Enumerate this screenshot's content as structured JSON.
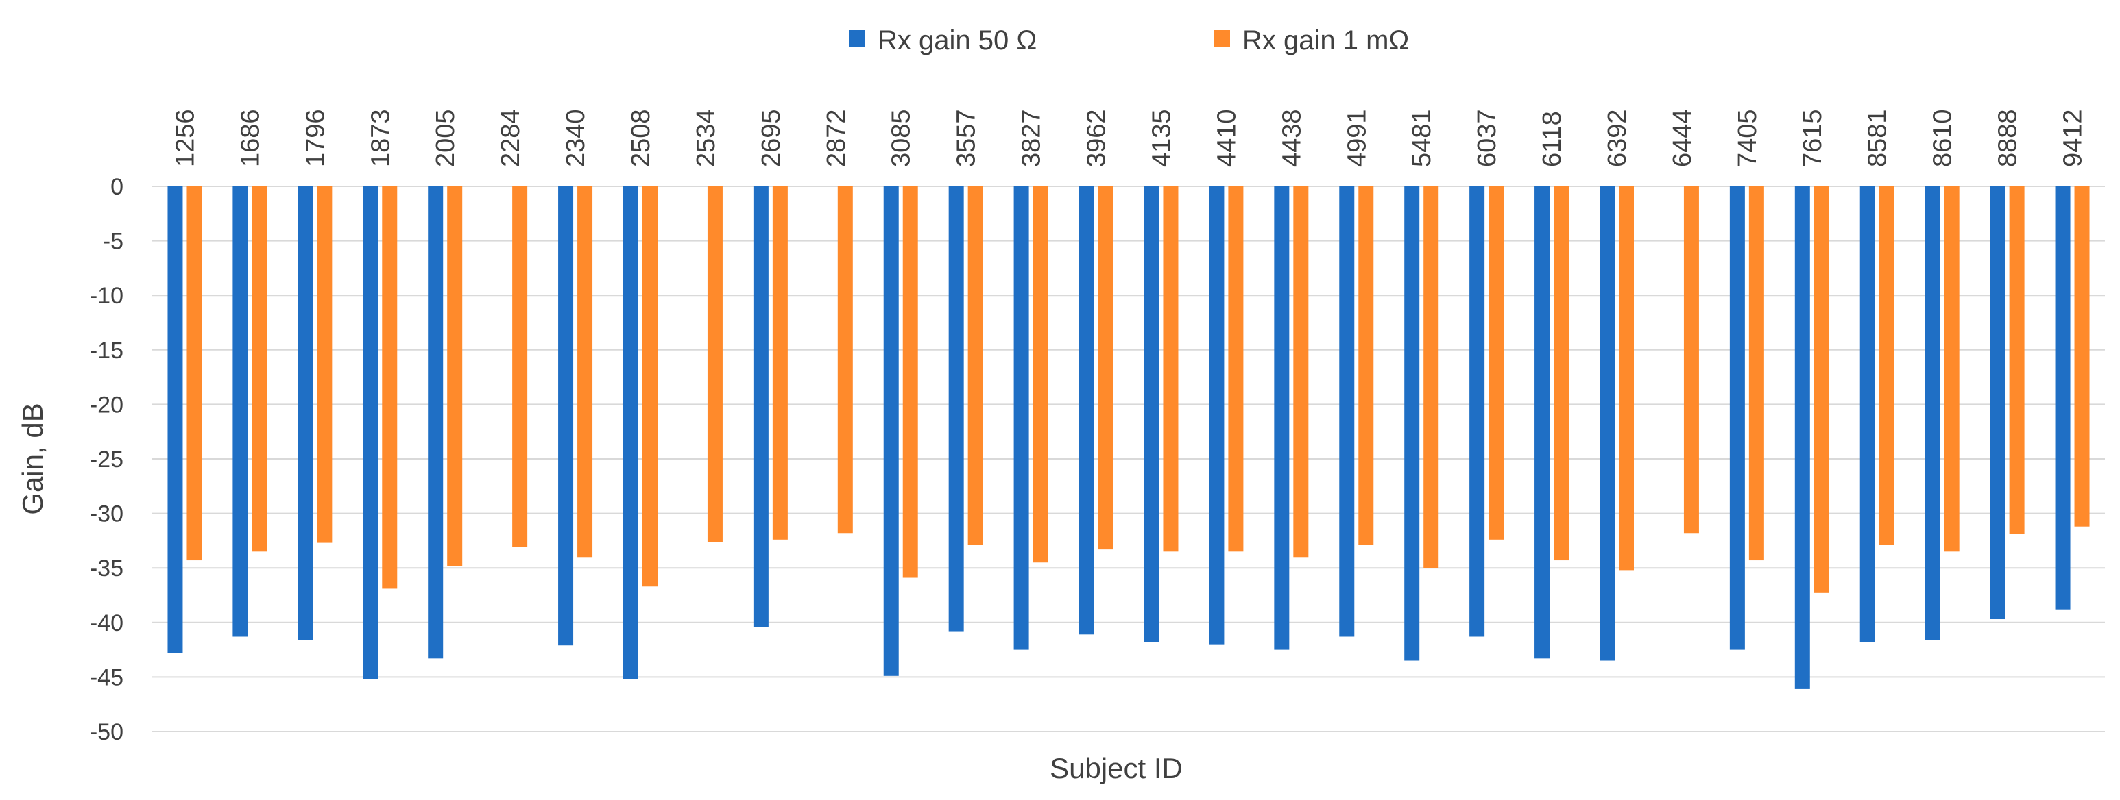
{
  "chart_data": {
    "type": "bar",
    "title": "",
    "xlabel": "Subject ID",
    "ylabel": "Gain, dB",
    "ylim": [
      -50,
      0
    ],
    "ytick_step": 5,
    "grid": true,
    "legend_position": "top",
    "x_tick_labels_position": "top",
    "categories": [
      "1256",
      "1686",
      "1796",
      "1873",
      "2005",
      "2284",
      "2340",
      "2508",
      "2534",
      "2695",
      "2872",
      "3085",
      "3557",
      "3827",
      "3962",
      "4135",
      "4410",
      "4438",
      "4991",
      "5481",
      "6037",
      "6118",
      "6392",
      "6444",
      "7405",
      "7615",
      "8581",
      "8610",
      "8888",
      "9412"
    ],
    "series": [
      {
        "name": "Rx gain 50 Ω",
        "color": "#1f6fc5",
        "values": [
          -42.8,
          -41.3,
          -41.6,
          -45.2,
          -43.3,
          null,
          -42.1,
          -45.2,
          null,
          -40.4,
          null,
          -44.9,
          -40.8,
          -42.5,
          -41.1,
          -41.8,
          -42.0,
          -42.5,
          -41.3,
          -43.5,
          -41.3,
          -43.3,
          -43.5,
          null,
          -42.5,
          -46.1,
          -41.8,
          -41.6,
          -39.7,
          -38.8
        ]
      },
      {
        "name": "Rx gain 1 mΩ",
        "color": "#ff8a2b",
        "values": [
          -34.3,
          -33.5,
          -32.7,
          -36.9,
          -34.8,
          -33.1,
          -34.0,
          -36.7,
          -32.6,
          -32.4,
          -31.8,
          -35.9,
          -32.9,
          -34.5,
          -33.3,
          -33.5,
          -33.5,
          -34.0,
          -32.9,
          -35.0,
          -32.4,
          -34.3,
          -35.2,
          -31.8,
          -34.3,
          -37.3,
          -32.9,
          -33.5,
          -31.9,
          -31.2
        ]
      }
    ]
  }
}
